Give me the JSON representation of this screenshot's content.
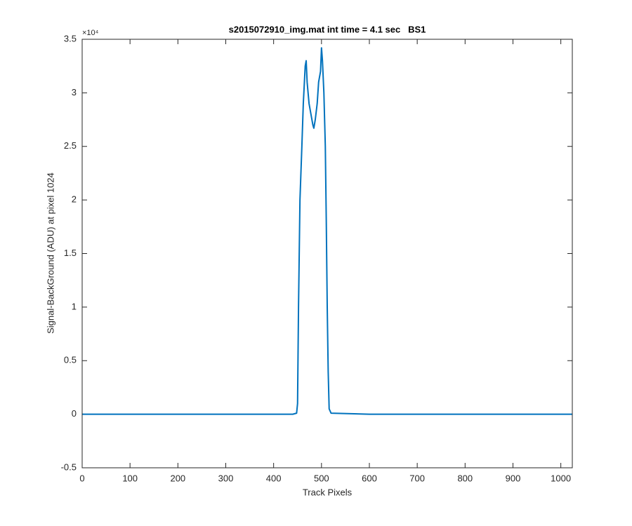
{
  "chart_data": {
    "type": "line",
    "title": "s2015072910_img.mat int time = 4.1 sec   BS1",
    "xlabel": "Track Pixels",
    "ylabel": "Signal-BackGround (ADU) at pixel 1024",
    "y_multiplier": "×10⁴",
    "x": [
      0,
      100,
      200,
      300,
      400,
      440,
      448,
      450,
      452,
      455,
      459,
      462,
      466,
      468,
      470,
      474,
      478,
      482,
      484,
      487,
      491,
      494,
      496,
      498,
      500,
      502,
      505,
      508,
      510,
      512,
      514,
      516,
      520,
      600,
      700,
      800,
      900,
      1024
    ],
    "series": [
      {
        "color": "#0072bd",
        "values": [
          0,
          0,
          0,
          0,
          0,
          0,
          0.01,
          0.1,
          1.0,
          2.0,
          2.5,
          2.9,
          3.25,
          3.3,
          3.1,
          2.9,
          2.8,
          2.7,
          2.67,
          2.75,
          2.9,
          3.1,
          3.15,
          3.2,
          3.42,
          3.3,
          3.0,
          2.5,
          1.8,
          1.0,
          0.4,
          0.05,
          0.01,
          0,
          0,
          0,
          0,
          0
        ]
      }
    ],
    "xlim": [
      0,
      1024
    ],
    "xticks": [
      0,
      100,
      200,
      300,
      400,
      500,
      600,
      700,
      800,
      900,
      1000
    ],
    "ylim": [
      -0.5,
      3.5
    ],
    "yticks": [
      -0.5,
      0,
      0.5,
      1,
      1.5,
      2,
      2.5,
      3,
      3.5
    ]
  }
}
